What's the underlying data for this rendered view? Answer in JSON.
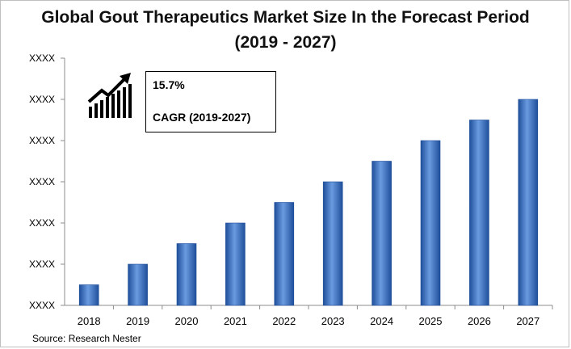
{
  "title": {
    "line1": "Global Gout Therapeutics Market Size In the Forecast Period",
    "line2": "(2019 - 2027)"
  },
  "source": "Source: Research Nester",
  "callout": {
    "value": "15.7%",
    "label": "CAGR (2019-2027)",
    "icon": "growth-chart-icon"
  },
  "chart_data": {
    "type": "bar",
    "categories": [
      "2018",
      "2019",
      "2020",
      "2021",
      "2022",
      "2023",
      "2024",
      "2025",
      "2026",
      "2027"
    ],
    "values": [
      1,
      2,
      3,
      4,
      5,
      6,
      7,
      8,
      9,
      10
    ],
    "ytick_labels": [
      "XXXX",
      "XXXX",
      "XXXX",
      "XXXX",
      "XXXX",
      "XXXX",
      "XXXX"
    ],
    "ylim": [
      0,
      12
    ],
    "bar_color": "#3d74c9",
    "bar_color_light": "#6a9be0",
    "bar_color_dark": "#1f4f9a",
    "grid": false
  }
}
